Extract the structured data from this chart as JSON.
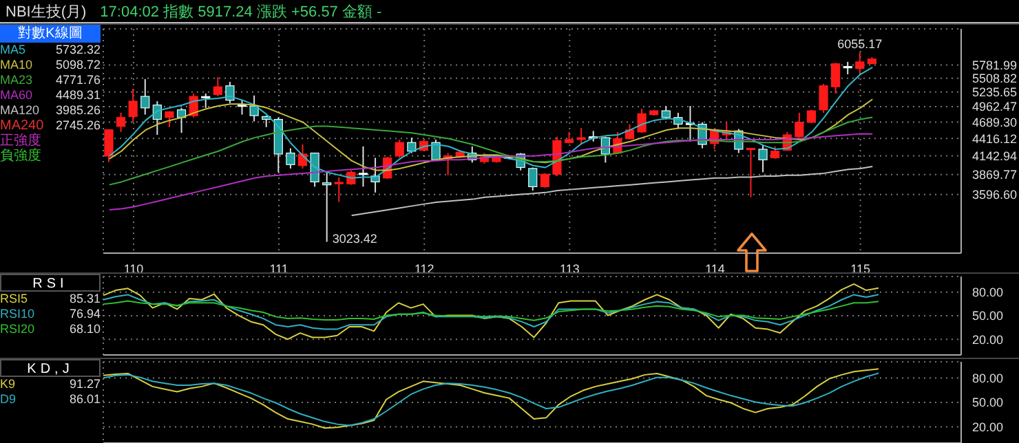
{
  "chart_data": [
    {
      "type": "candlestick",
      "title": "NBI生技(月)",
      "subtitle": "17:04:02 指數 5917.24 漲跌 +56.57 金額 -",
      "categories": [
        null,
        null,
        "110",
        null,
        null,
        null,
        null,
        null,
        null,
        null,
        null,
        null,
        null,
        null,
        "111",
        null,
        null,
        null,
        null,
        null,
        null,
        null,
        null,
        null,
        null,
        null,
        "112",
        null,
        null,
        null,
        null,
        null,
        null,
        null,
        null,
        null,
        null,
        null,
        "113",
        null,
        null,
        null,
        null,
        null,
        null,
        null,
        null,
        null,
        null,
        null,
        "114",
        null,
        null,
        null,
        null,
        null,
        null,
        null,
        null,
        null,
        null,
        null,
        "115",
        null
      ],
      "ohlc": [
        [
          4140,
          4570,
          4050,
          4560
        ],
        [
          4615,
          4853,
          4523,
          4769
        ],
        [
          4786,
          5300,
          4686,
          5063
        ],
        [
          5153,
          5490,
          4820,
          4940
        ],
        [
          4992,
          5063,
          4475,
          4736
        ],
        [
          4769,
          4880,
          4604,
          4870
        ],
        [
          4905,
          4940,
          4507,
          4769
        ],
        [
          4802,
          5207,
          4769,
          5153
        ],
        [
          5150,
          5207,
          4940,
          5150
        ],
        [
          5189,
          5529,
          5153,
          5338
        ],
        [
          5357,
          5434,
          5027,
          5081
        ],
        [
          4992,
          5081,
          4820,
          4992
        ],
        [
          4975,
          5170,
          4703,
          4802
        ],
        [
          4786,
          4802,
          4604,
          4736
        ],
        [
          4736,
          4769,
          3901,
          4171
        ],
        [
          4186,
          4260,
          3956,
          4012
        ],
        [
          3998,
          4320,
          3956,
          4171
        ],
        [
          4186,
          4186,
          3700,
          3766
        ],
        [
          3753,
          3901,
          3023.42,
          3726
        ],
        [
          3740,
          3830,
          3500,
          3760
        ],
        [
          3739,
          3929,
          3726,
          3901
        ],
        [
          3887,
          4290,
          3700,
          3887
        ],
        [
          3847,
          4113,
          3622,
          3766
        ],
        [
          3820,
          4128,
          3806,
          4113
        ],
        [
          4142,
          4398,
          4113,
          4351
        ],
        [
          4351,
          4429,
          4186,
          4215
        ],
        [
          4230,
          4398,
          4215,
          4367
        ],
        [
          4351,
          4398,
          4070,
          4084
        ],
        [
          4099,
          4186,
          3860,
          4142
        ],
        [
          4128,
          4230,
          4113,
          4200
        ],
        [
          4186,
          4290,
          4042,
          4084
        ],
        [
          4056,
          4186,
          4028,
          4128
        ],
        [
          4056,
          4142,
          4042,
          4113
        ],
        [
          4128,
          4157,
          4099,
          4128
        ],
        [
          4171,
          4186,
          3929,
          3970
        ],
        [
          3956,
          3970,
          3648,
          3700
        ],
        [
          3700,
          3887,
          3687,
          3874
        ],
        [
          3874,
          4444,
          3847,
          4382
        ],
        [
          4351,
          4523,
          4336,
          4398
        ],
        [
          4398,
          4588,
          4320,
          4429
        ],
        [
          4444,
          4540,
          4367,
          4444
        ],
        [
          4429,
          4444,
          4042,
          4171
        ],
        [
          4186,
          4523,
          4171,
          4413
        ],
        [
          4413,
          4653,
          4398,
          4556
        ],
        [
          4523,
          4922,
          4507,
          4836
        ],
        [
          4820,
          4905,
          4802,
          4888
        ],
        [
          4888,
          4975,
          4736,
          4769
        ],
        [
          4769,
          4853,
          4572,
          4653
        ],
        [
          4670,
          4975,
          4367,
          4670
        ],
        [
          4653,
          4686,
          4260,
          4320
        ],
        [
          4336,
          4588,
          4245,
          4556
        ],
        [
          4475,
          4686,
          4398,
          4523
        ],
        [
          4540,
          4572,
          4186,
          4245
        ],
        [
          4245,
          4260,
          3560,
          4260
        ],
        [
          4245,
          4320,
          3901,
          4084
        ],
        [
          4113,
          4290,
          4100,
          4215
        ],
        [
          4230,
          4523,
          4220,
          4475
        ],
        [
          4444,
          4853,
          4430,
          4686
        ],
        [
          4686,
          4905,
          4670,
          4888
        ],
        [
          4905,
          5395,
          4853,
          5357
        ],
        [
          5338,
          5828,
          5207,
          5808
        ],
        [
          5750,
          5848,
          5587,
          5750
        ],
        [
          5707,
          6055.17,
          5587,
          5848
        ],
        [
          5808,
          5950,
          5808,
          5910
        ]
      ],
      "series": [
        {
          "name": "MA5",
          "type": "line",
          "color": "#2fb8c8",
          "values": [
            4142,
            4290,
            4491,
            4720,
            4888,
            4940,
            4992,
            5063,
            5099,
            5117,
            5153,
            5081,
            4992,
            4820,
            4604,
            4336,
            4142,
            3970,
            3901,
            3860,
            3820,
            3833,
            3833,
            3956,
            4099,
            4215,
            4290,
            4320,
            4290,
            4215,
            4171,
            4142,
            4142,
            4099,
            4070,
            3998,
            3970,
            4070,
            4186,
            4336,
            4429,
            4460,
            4475,
            4556,
            4653,
            4720,
            4753,
            4736,
            4670,
            4588,
            4540,
            4507,
            4475,
            4398,
            4305,
            4245,
            4260,
            4367,
            4523,
            4769,
            5063,
            5357,
            5587,
            5732.32
          ]
        },
        {
          "name": "MA10",
          "type": "line",
          "color": "#c8c040",
          "values": [
            4099,
            4215,
            4398,
            4556,
            4653,
            4720,
            4769,
            4853,
            4922,
            4975,
            5010,
            5010,
            4992,
            4940,
            4853,
            4769,
            4686,
            4523,
            4367,
            4215,
            4070,
            3984,
            3929,
            3929,
            3956,
            3998,
            4042,
            4084,
            4113,
            4128,
            4142,
            4157,
            4157,
            4128,
            4099,
            4056,
            4042,
            4070,
            4099,
            4142,
            4215,
            4275,
            4320,
            4367,
            4429,
            4491,
            4556,
            4588,
            4588,
            4572,
            4556,
            4540,
            4523,
            4491,
            4460,
            4429,
            4413,
            4398,
            4429,
            4523,
            4653,
            4820,
            4940,
            5098.72
          ]
        },
        {
          "name": "MA23",
          "type": "line",
          "color": "#3aa83a",
          "values": [
            3726,
            3766,
            3820,
            3874,
            3929,
            3984,
            4042,
            4099,
            4157,
            4215,
            4290,
            4367,
            4429,
            4475,
            4523,
            4556,
            4588,
            4620,
            4620,
            4604,
            4588,
            4572,
            4556,
            4540,
            4523,
            4507,
            4475,
            4444,
            4413,
            4367,
            4320,
            4260,
            4200,
            4142,
            4084,
            4056,
            4056,
            4070,
            4099,
            4128,
            4142,
            4157,
            4186,
            4230,
            4290,
            4336,
            4367,
            4382,
            4382,
            4382,
            4382,
            4367,
            4367,
            4367,
            4351,
            4351,
            4351,
            4367,
            4429,
            4523,
            4604,
            4686,
            4736,
            4771.76
          ]
        },
        {
          "name": "MA60",
          "type": "line",
          "color": "#b030c0",
          "values": [
            3400,
            3412,
            3436,
            3472,
            3509,
            3547,
            3584,
            3622,
            3661,
            3700,
            3739,
            3779,
            3820,
            3847,
            3860,
            3874,
            3887,
            3901,
            3915,
            3929,
            3942,
            3956,
            3970,
            3998,
            4028,
            4056,
            4070,
            4070,
            4084,
            4084,
            4099,
            4113,
            4128,
            4142,
            4142,
            4142,
            4157,
            4171,
            4200,
            4230,
            4260,
            4275,
            4290,
            4305,
            4320,
            4336,
            4351,
            4367,
            4382,
            4398,
            4398,
            4398,
            4398,
            4398,
            4398,
            4398,
            4413,
            4413,
            4429,
            4444,
            4460,
            4475,
            4491,
            4489.31
          ]
        },
        {
          "name": "MA120",
          "type": "line",
          "color": "#c0c0c0",
          "values": [
            null,
            null,
            null,
            null,
            null,
            null,
            null,
            null,
            null,
            null,
            null,
            null,
            null,
            null,
            null,
            null,
            null,
            null,
            null,
            null,
            3330,
            3353,
            3376,
            3400,
            3424,
            3448,
            3472,
            3496,
            3509,
            3521,
            3534,
            3559,
            3571,
            3584,
            3597,
            3610,
            3622,
            3648,
            3661,
            3674,
            3687,
            3700,
            3713,
            3726,
            3739,
            3753,
            3766,
            3779,
            3793,
            3806,
            3820,
            3820,
            3833,
            3833,
            3847,
            3847,
            3860,
            3860,
            3874,
            3887,
            3915,
            3942,
            3956,
            3985.26
          ]
        }
      ],
      "ylim": [
        2900,
        6600
      ],
      "yticks": [
        5781.99,
        5508.82,
        5235.65,
        4962.47,
        {
          "value": 4689.3,
          "label": "4689.30"
        },
        4416.12,
        4142.94,
        3869.77,
        {
          "value": 3596.6,
          "label": "3596.60"
        }
      ],
      "log": true,
      "grid": true,
      "legend": "left",
      "annotations": [
        "對數K線圖",
        "5732.32",
        "5098.72",
        "4771.76",
        "4489.31",
        "3985.26",
        "MA240 2745.26",
        "正強度",
        "負強度",
        "3023.42",
        "6055.17"
      ]
    },
    {
      "type": "line",
      "title": "RSI",
      "annotations": [
        "85.31",
        "76.94",
        "68.10"
      ],
      "categories": [
        null,
        null,
        null,
        null,
        null,
        null,
        null,
        null,
        null,
        null,
        null,
        null,
        null,
        null,
        null,
        null,
        null,
        null,
        null,
        null,
        null,
        null,
        null,
        null,
        null,
        null,
        null,
        null,
        null,
        null,
        null,
        null,
        null,
        null,
        null,
        null,
        null,
        null,
        null,
        null,
        null,
        null,
        null,
        null,
        null,
        null,
        null,
        null,
        null,
        null,
        null,
        null,
        null,
        null,
        null,
        null,
        null,
        null,
        null,
        null,
        null,
        null,
        null,
        null
      ],
      "series": [
        {
          "name": "RSI5",
          "color": "#d8d040",
          "values": [
            76,
            82.4,
            84.8,
            76,
            60,
            66.4,
            58.4,
            72,
            70.4,
            77.6,
            60,
            50.4,
            42.4,
            38.4,
            26.4,
            20,
            28,
            22.4,
            22.4,
            24.8,
            36,
            36,
            30.4,
            54.4,
            66.4,
            60,
            64.8,
            48.8,
            50.4,
            50.4,
            50.4,
            46.4,
            48.8,
            46.4,
            36,
            22.4,
            40.8,
            66.4,
            68.8,
            68.8,
            68.8,
            50.4,
            56.8,
            62.4,
            70.4,
            76.8,
            70.4,
            60,
            58.4,
            50.4,
            34.4,
            52,
            46.4,
            34.4,
            32.8,
            28,
            42.4,
            56,
            62.4,
            72,
            83.2,
            90.4,
            82.4,
            85.31
          ]
        },
        {
          "name": "RSI10",
          "color": "#30b0c0",
          "values": [
            70.4,
            74.4,
            76.8,
            70.4,
            64.8,
            66.4,
            62.4,
            68,
            68.8,
            70.4,
            62.4,
            56.8,
            52,
            46.4,
            38.4,
            36,
            38.4,
            34.4,
            32.8,
            32.8,
            38.4,
            38.4,
            38.4,
            48.8,
            52,
            52,
            54.4,
            48.8,
            48.8,
            48.8,
            48.8,
            47.2,
            48.8,
            47.2,
            42.4,
            36,
            42.4,
            58.4,
            58.4,
            58.4,
            58.4,
            53.6,
            56.8,
            60.8,
            64.8,
            68,
            66.4,
            60,
            58.4,
            52,
            44,
            50.4,
            48.8,
            44,
            42.4,
            38.4,
            44,
            50.4,
            56.8,
            62.4,
            70.4,
            76.8,
            73.6,
            76.94
          ]
        },
        {
          "name": "RSI20",
          "color": "#30c030",
          "values": [
            64.8,
            66.4,
            68.8,
            66.4,
            64.8,
            64.8,
            63.2,
            66.4,
            66.4,
            66.4,
            62.4,
            60,
            56.8,
            54.4,
            48.8,
            46.4,
            47.2,
            45.6,
            44.8,
            44.8,
            46.4,
            46.4,
            45.6,
            50.4,
            52,
            52,
            53.6,
            50.4,
            49.6,
            49.6,
            49.6,
            48.8,
            49.6,
            48.8,
            46.4,
            44,
            47.2,
            55.2,
            56.8,
            58.4,
            58.4,
            56,
            56.8,
            58.4,
            60.8,
            62.4,
            61.6,
            58.4,
            56.8,
            53.6,
            48.8,
            50.4,
            50.4,
            47.2,
            46.4,
            45.6,
            48.8,
            52,
            55.2,
            58.4,
            62.4,
            66.4,
            66.4,
            68.1
          ]
        }
      ],
      "ylim": [
        0,
        100
      ],
      "yticks": [
        {
          "value": 80,
          "label": "80.00"
        },
        {
          "value": 50,
          "label": "50.00"
        },
        {
          "value": 20,
          "label": "20.00"
        }
      ],
      "grid": true,
      "legend": "left",
      "tick_labels": "y"
    },
    {
      "type": "line",
      "title": "KD,J",
      "annotations": [
        "91.27",
        "86.01"
      ],
      "categories": [
        null,
        null,
        null,
        null,
        null,
        null,
        null,
        null,
        null,
        null,
        null,
        null,
        null,
        null,
        null,
        null,
        null,
        null,
        null,
        null,
        null,
        null,
        null,
        null,
        null,
        null,
        null,
        null,
        null,
        null,
        null,
        null,
        null,
        null,
        null,
        null,
        null,
        null,
        null,
        null,
        null,
        null,
        null,
        null,
        null,
        null,
        null,
        null,
        null,
        null,
        null,
        null,
        null,
        null,
        null,
        null,
        null,
        null,
        null,
        null,
        null,
        null,
        null,
        null
      ],
      "series": [
        {
          "name": "K9",
          "color": "#d8d040",
          "values": [
            83.2,
            84.8,
            85.6,
            77.6,
            69.6,
            66.4,
            63.2,
            67.2,
            69.6,
            73.6,
            68,
            61.6,
            55.2,
            47.2,
            37.6,
            29.6,
            26.4,
            23.2,
            18.4,
            19.2,
            21.6,
            24,
            28,
            53.6,
            63.2,
            69.6,
            76,
            74.4,
            72.8,
            71.2,
            66.4,
            61.6,
            58.4,
            55.2,
            42.4,
            29.6,
            31.2,
            47.2,
            57.6,
            64.8,
            69.6,
            72.8,
            76,
            79.2,
            84,
            85.6,
            81.6,
            77.6,
            69.6,
            58.4,
            53.6,
            49.6,
            42.4,
            37.6,
            42.4,
            44,
            47.2,
            57.6,
            69.6,
            79.2,
            84,
            88,
            89.6,
            91.27
          ]
        },
        {
          "name": "D9",
          "color": "#30b0c0",
          "values": [
            80,
            83.2,
            84,
            80.8,
            76,
            73.6,
            71.2,
            71.2,
            72.8,
            73.6,
            71.2,
            66.4,
            61.6,
            55.2,
            49.6,
            42.4,
            36,
            31.2,
            26.4,
            23.2,
            21.6,
            24.8,
            29.6,
            39.2,
            49.6,
            60,
            66.4,
            71.2,
            73.6,
            72.8,
            71.2,
            68.8,
            65.6,
            61.6,
            56,
            48.8,
            42.4,
            44,
            49.6,
            55.2,
            60,
            64,
            67.2,
            71.2,
            76,
            80.8,
            80.8,
            77.6,
            73.6,
            68,
            63.2,
            58.4,
            54.4,
            50.4,
            48,
            46.4,
            45.6,
            49.6,
            55.2,
            61.6,
            69.6,
            76,
            81.6,
            86.01
          ]
        }
      ],
      "ylim": [
        0,
        100
      ],
      "yticks": [
        {
          "value": 80,
          "label": "80.00"
        },
        {
          "value": 50,
          "label": "50.00"
        },
        {
          "value": 20,
          "label": "20.00"
        }
      ],
      "grid": true,
      "legend": "left",
      "tick_labels": "y"
    }
  ]
}
